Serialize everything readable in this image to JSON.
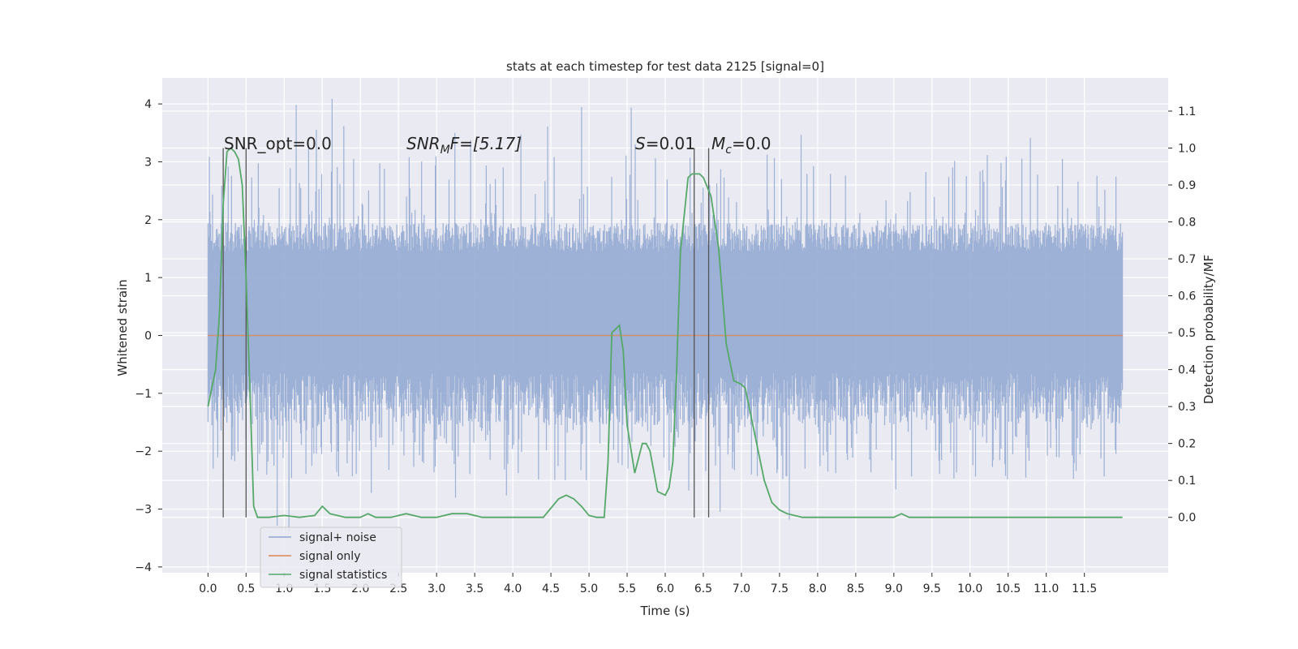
{
  "chart_data": {
    "type": "line",
    "title": "stats at each timestep for test data 2125 [signal=0]",
    "xlabel": "Time (s)",
    "ylabel": "Whitened strain",
    "y2label": "Detection probability/MF",
    "xlim": [
      -0.6,
      12.6
    ],
    "ylim": [
      -4.1,
      4.45
    ],
    "y2lim": [
      -0.15,
      1.19
    ],
    "x_ticks": [
      "0.0",
      "0.5",
      "1.0",
      "1.5",
      "2.0",
      "2.5",
      "3.0",
      "3.5",
      "4.0",
      "4.5",
      "5.0",
      "5.5",
      "6.0",
      "6.5",
      "7.0",
      "7.5",
      "8.0",
      "8.5",
      "9.0",
      "9.5",
      "10.0",
      "10.5",
      "11.0",
      "11.5"
    ],
    "y_ticks": [
      4,
      3,
      2,
      1,
      0,
      -1,
      -2,
      -3,
      -4
    ],
    "y_tick_labels": [
      "4",
      "3",
      "2",
      "1",
      "0",
      "−1",
      "−2",
      "−3",
      "−4"
    ],
    "y2_ticks": [
      "1.1",
      "1.0",
      "0.9",
      "0.8",
      "0.7",
      "0.6",
      "0.5",
      "0.4",
      "0.3",
      "0.2",
      "0.1",
      "0.0"
    ],
    "grid": true,
    "legend_position": "lower-left",
    "series": [
      {
        "name": "signal+ noise",
        "color": "#8fa6d0",
        "kind": "noise",
        "x_range": [
          0.0,
          12.0
        ],
        "typical_band": [
          -1.55,
          1.95
        ],
        "peak_range": [
          -3.45,
          4.1
        ]
      },
      {
        "name": "signal only",
        "color": "#dd8452",
        "x": [
          0.0,
          12.0
        ],
        "y": [
          0.0,
          0.0
        ]
      },
      {
        "name": "signal statistics",
        "color": "#55a868",
        "axis": "right",
        "x": [
          0.0,
          0.1,
          0.15,
          0.2,
          0.25,
          0.3,
          0.35,
          0.4,
          0.45,
          0.5,
          0.55,
          0.6,
          0.65,
          0.7,
          0.8,
          1.0,
          1.2,
          1.4,
          1.5,
          1.6,
          1.8,
          2.0,
          2.1,
          2.2,
          2.4,
          2.6,
          2.8,
          3.0,
          3.2,
          3.4,
          3.6,
          3.8,
          4.0,
          4.2,
          4.4,
          4.6,
          4.7,
          4.8,
          4.9,
          5.0,
          5.1,
          5.2,
          5.25,
          5.3,
          5.4,
          5.45,
          5.5,
          5.6,
          5.7,
          5.75,
          5.8,
          5.9,
          6.0,
          6.05,
          6.1,
          6.15,
          6.2,
          6.3,
          6.35,
          6.4,
          6.45,
          6.5,
          6.6,
          6.7,
          6.8,
          6.9,
          7.0,
          7.05,
          7.1,
          7.2,
          7.3,
          7.4,
          7.5,
          7.6,
          7.8,
          8.0,
          8.2,
          8.5,
          9.0,
          9.1,
          9.2,
          9.5,
          10.0,
          10.5,
          11.0,
          11.5,
          12.0
        ],
        "y": [
          0.3,
          0.4,
          0.55,
          0.85,
          0.99,
          1.0,
          0.99,
          0.97,
          0.9,
          0.65,
          0.35,
          0.03,
          0.0,
          0.0,
          0.0,
          0.005,
          0.0,
          0.005,
          0.03,
          0.01,
          0.0,
          0.0,
          0.01,
          0.0,
          0.0,
          0.01,
          0.0,
          0.0,
          0.01,
          0.01,
          0.0,
          0.0,
          0.0,
          0.0,
          0.0,
          0.05,
          0.06,
          0.05,
          0.03,
          0.005,
          0.0,
          0.0,
          0.15,
          0.5,
          0.52,
          0.45,
          0.25,
          0.12,
          0.2,
          0.2,
          0.18,
          0.07,
          0.06,
          0.08,
          0.15,
          0.4,
          0.72,
          0.92,
          0.93,
          0.93,
          0.93,
          0.92,
          0.87,
          0.73,
          0.47,
          0.37,
          0.36,
          0.35,
          0.3,
          0.2,
          0.1,
          0.04,
          0.02,
          0.01,
          0.0,
          0.0,
          0.0,
          0.0,
          0.0,
          0.01,
          0.0,
          0.0,
          0.0,
          0.0,
          0.0,
          0.0,
          0.0
        ]
      }
    ],
    "vlines_x": [
      0.2,
      0.5,
      6.38,
      6.57
    ],
    "annotations": [
      {
        "text": "SNR_opt=0.0"
      },
      {
        "main": "SNR",
        "sub": "M",
        "rest": "F=[5.17]"
      },
      {
        "main": "S",
        "rest": "=0.01"
      },
      {
        "main": "M",
        "sub": "c",
        "rest": "=0.0"
      }
    ]
  }
}
